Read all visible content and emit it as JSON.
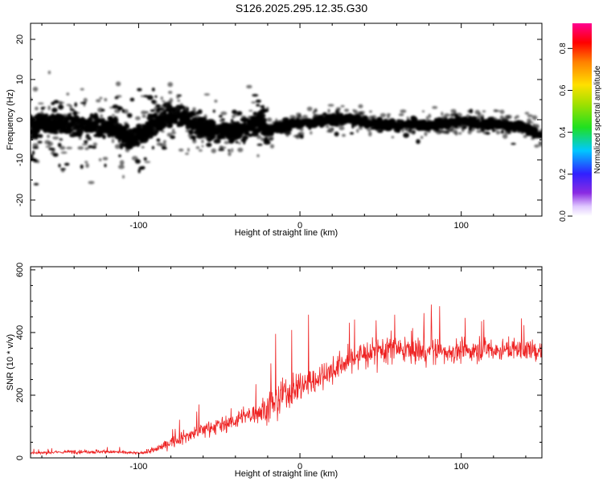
{
  "title": "S126.2025.295.12.35.G30",
  "chart_data": [
    {
      "type": "heatmap",
      "xlabel": "Height of straight line (km)",
      "ylabel": "Frequency (Hz)",
      "xlim": [
        -167,
        150
      ],
      "ylim": [
        -24,
        24
      ],
      "x_ticks": [
        -100,
        0,
        100
      ],
      "y_ticks": [
        -20,
        -10,
        0,
        10,
        20
      ],
      "colorbar": {
        "label": "Normalized spectral amplitude",
        "range": [
          0,
          0.92
        ],
        "ticks": [
          "0.0",
          "0.2",
          "0.4",
          "0.6",
          "0.8"
        ]
      },
      "ridge": {
        "x": [
          -167,
          -150,
          -130,
          -115,
          -105,
          -100,
          -90,
          -80,
          -70,
          -60,
          -50,
          -40,
          -30,
          -25,
          -20,
          -10,
          0,
          10,
          20,
          30,
          40,
          50,
          60,
          70,
          80,
          90,
          100,
          110,
          120,
          130,
          140,
          150
        ],
        "y": [
          -1,
          -1,
          -1.5,
          -2.5,
          -5,
          -4,
          -1,
          1,
          0,
          -2,
          -3,
          -3,
          -1,
          0,
          -3,
          -1.5,
          -1,
          -0.5,
          0,
          0.5,
          -0.5,
          -1,
          -1.5,
          -1,
          -1.5,
          -1,
          0,
          -1,
          -1,
          -1.5,
          -2,
          -4
        ]
      }
    },
    {
      "type": "line",
      "xlabel": "Height of straight line (km)",
      "ylabel": "SNR (10 * v/v)",
      "xlim": [
        -167,
        150
      ],
      "ylim": [
        0,
        610
      ],
      "x_ticks": [
        -100,
        0,
        100
      ],
      "y_ticks": [
        0,
        200,
        400,
        600
      ],
      "color": "#ee2222",
      "envelope": {
        "x": [
          -167,
          -140,
          -120,
          -100,
          -90,
          -80,
          -70,
          -60,
          -50,
          -40,
          -30,
          -20,
          -15,
          -10,
          0,
          10,
          20,
          30,
          40,
          50,
          60,
          80,
          100,
          120,
          140,
          150
        ],
        "mean": [
          15,
          20,
          20,
          15,
          25,
          50,
          70,
          90,
          105,
          120,
          140,
          160,
          180,
          200,
          230,
          250,
          280,
          310,
          330,
          345,
          345,
          340,
          340,
          345,
          345,
          340
        ],
        "amplitude": [
          10,
          15,
          15,
          10,
          25,
          40,
          50,
          60,
          65,
          70,
          80,
          100,
          130,
          140,
          130,
          120,
          100,
          100,
          110,
          120,
          110,
          100,
          90,
          85,
          80,
          80
        ]
      }
    }
  ]
}
